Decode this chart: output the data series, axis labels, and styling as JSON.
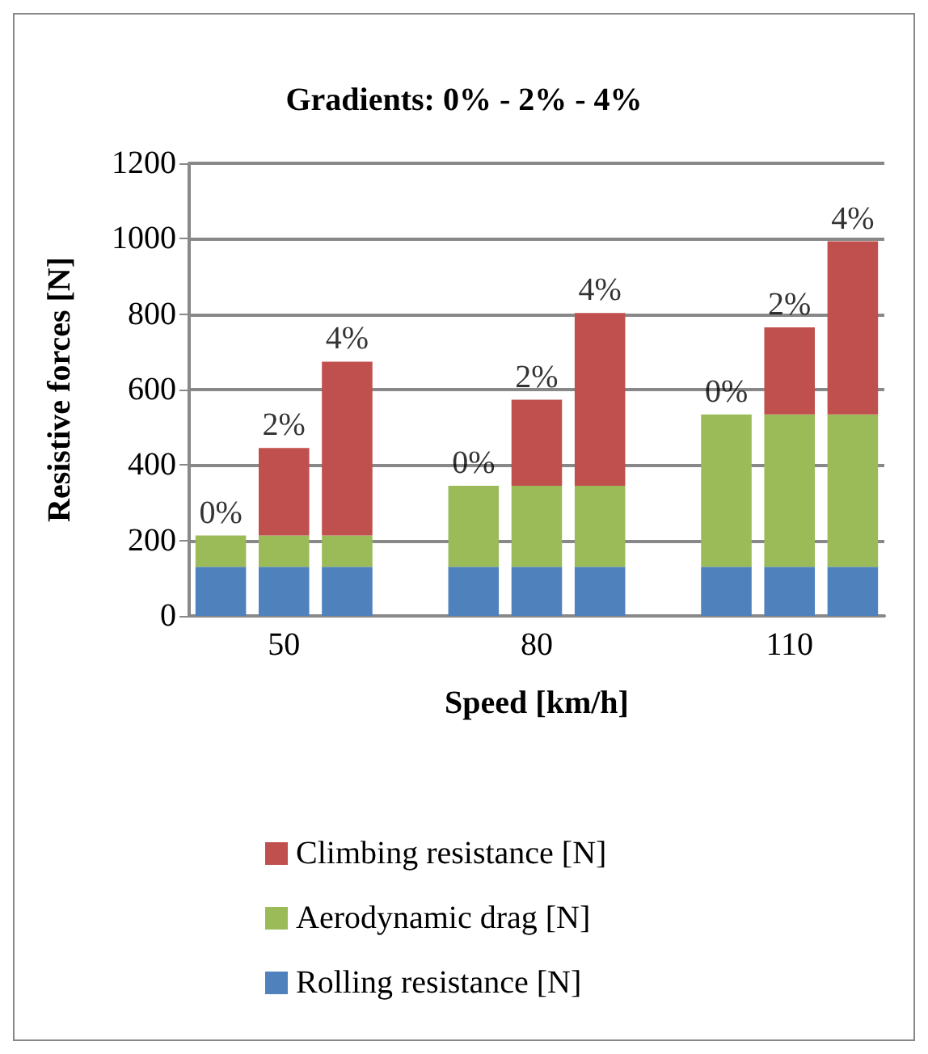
{
  "chart_data": {
    "type": "bar",
    "title": "Gradients: 0% - 2% - 4%",
    "xlabel": "Speed [km/h]",
    "ylabel": "Resistive forces [N]",
    "stacked": true,
    "legend": "bottom",
    "grid": "y",
    "categories": [
      null,
      "50",
      null,
      null,
      null,
      "80",
      null,
      null,
      null,
      "110",
      null
    ],
    "ylim": [
      0,
      1200
    ],
    "yticks": [
      0,
      200,
      400,
      600,
      800,
      1000,
      1200
    ],
    "series": [
      {
        "name": "Rolling resistance [N]",
        "color": "#4f81bd",
        "values": [
          130,
          130,
          130,
          null,
          130,
          130,
          130,
          null,
          130,
          130,
          130
        ]
      },
      {
        "name": "Aerodynamic drag [N]",
        "color": "#9bbb59",
        "values": [
          83,
          83,
          83,
          null,
          215,
          215,
          215,
          null,
          404,
          404,
          404
        ]
      },
      {
        "name": "Climbing resistance [N]",
        "color": "#c0504d",
        "values": [
          0,
          232,
          461,
          null,
          0,
          228,
          458,
          null,
          0,
          231,
          459
        ]
      }
    ],
    "annotations": [
      {
        "text": "0%",
        "y": 213
      },
      {
        "text": "2%",
        "y": 445
      },
      {
        "text": "4%",
        "y": 674
      },
      {
        "text": "0%",
        "y": 345
      },
      {
        "text": "2%",
        "y": 573
      },
      {
        "text": "4%",
        "y": 803
      },
      {
        "text": "0%",
        "y": 534
      },
      {
        "text": "2%",
        "y": 765
      },
      {
        "text": "4%",
        "y": 993
      }
    ]
  }
}
